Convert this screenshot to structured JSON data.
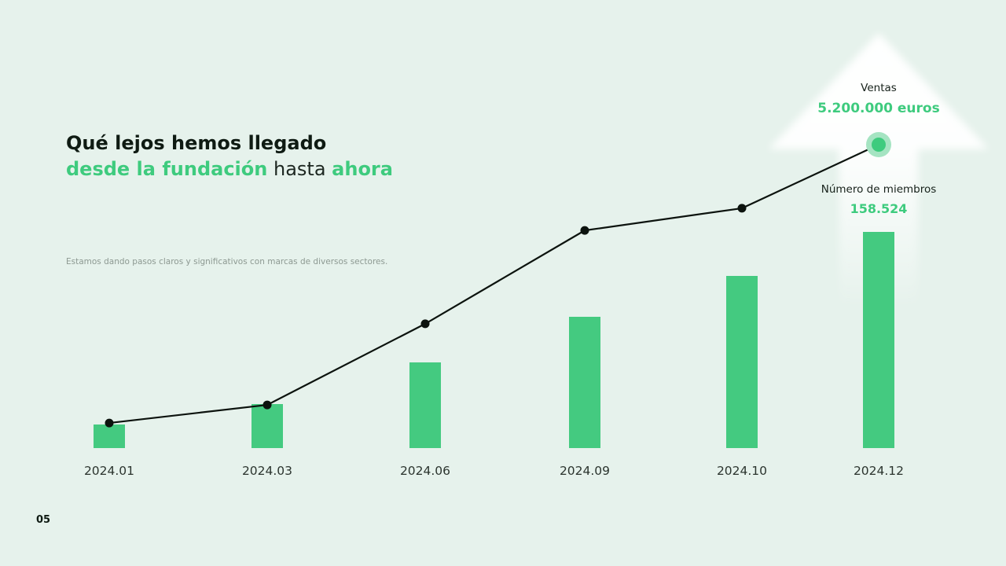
{
  "slide": {
    "page_number": "05"
  },
  "title": {
    "line1": "Qué lejos hemos llegado",
    "line2_part1": "desde la fundación",
    "line2_part2": " hasta ",
    "line2_part3": "ahora"
  },
  "description": "Estamos dando pasos claros y significativos con marcas de diversos sectores.",
  "annotations": {
    "ventas_label": "Ventas",
    "ventas_value": "5.200.000 euros",
    "miembros_label": "Número de miembros",
    "miembros_value": "158.524"
  },
  "colors": {
    "background": "#e6f2ec",
    "accent_green": "#3ecb7e",
    "bar_green": "#44ca80",
    "marker_outer_green": "#a5e4c2",
    "line_dark": "#0c130e",
    "dark_text": "#0f1b13"
  },
  "chart_data": {
    "type": "bar+line",
    "title": "",
    "categories": [
      "2024.01",
      "2024.03",
      "2024.06",
      "2024.09",
      "2024.10",
      "2024.12"
    ],
    "series": [
      {
        "name": "Número de miembros",
        "type": "bar",
        "values": [
          17000,
          32000,
          63000,
          96000,
          126000,
          158524
        ]
      },
      {
        "name": "Ventas (euros)",
        "type": "line",
        "values": [
          430000,
          740000,
          2130000,
          3730000,
          4110000,
          5200000
        ]
      }
    ],
    "ylim_bar": [
      0,
      160000
    ],
    "ylim_line": [
      0,
      5200000
    ],
    "xlabel": "",
    "ylabel": "",
    "grid": false,
    "legend": "none",
    "annotations": [
      {
        "target": "line_last_point",
        "label": "Ventas",
        "value": "5.200.000 euros"
      },
      {
        "target": "bar_last",
        "label": "Número de miembros",
        "value": "158.524"
      }
    ]
  }
}
